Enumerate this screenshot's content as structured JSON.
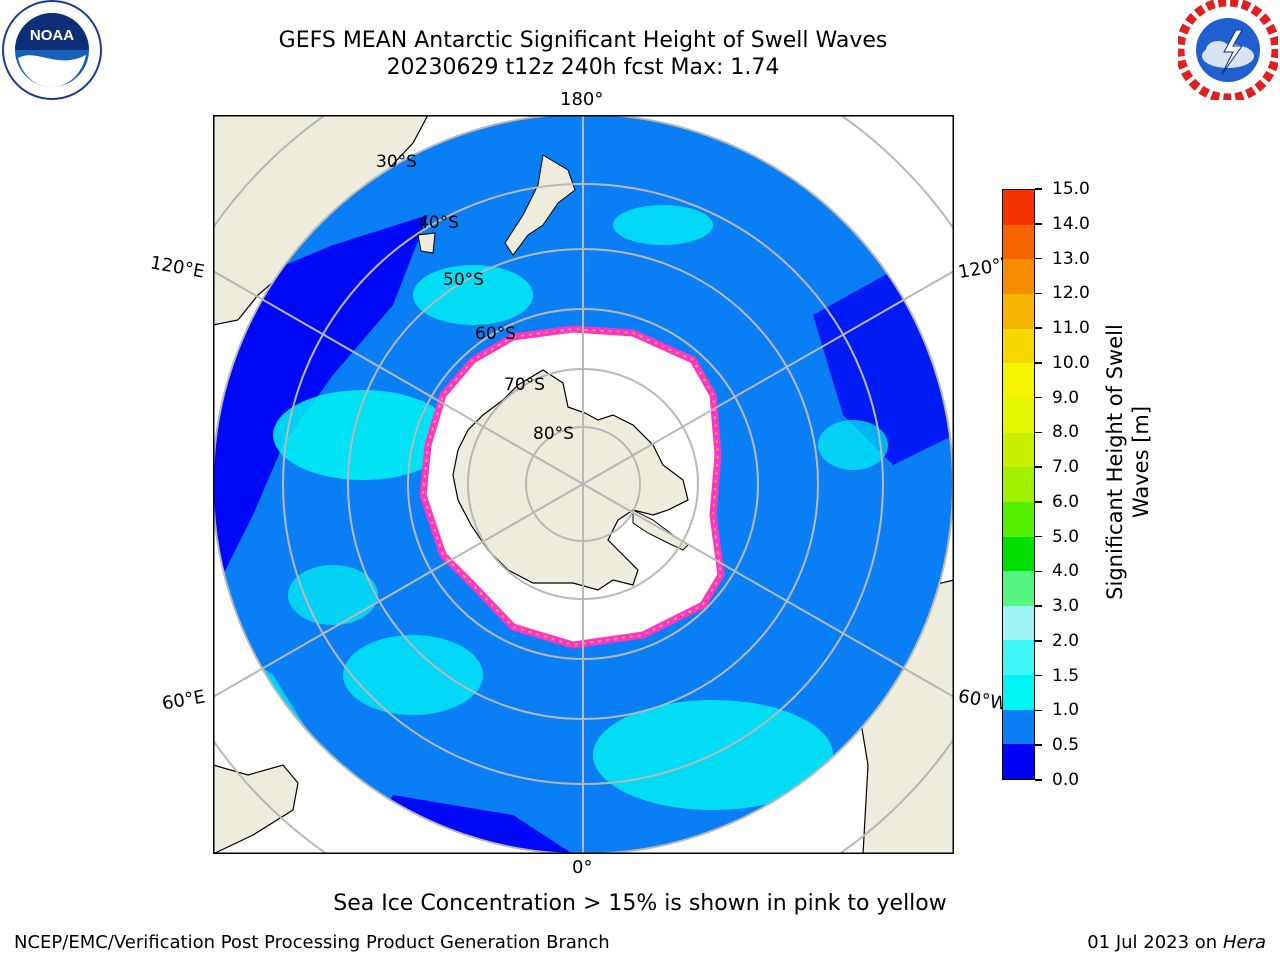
{
  "header": {
    "title_line1": "GEFS MEAN Antarctic Significant Height of Swell Waves",
    "title_line2": "20230629 t12z 240h fcst   Max: 1.74"
  },
  "logos": {
    "left_name": "NOAA",
    "right_name": "NATIONAL WEATHER SERVICE"
  },
  "map": {
    "longitude_labels": [
      "180°",
      "120°E",
      "120°W",
      "60°E",
      "60°W",
      "0°"
    ],
    "latitude_labels": [
      "30°S",
      "40°S",
      "50°S",
      "60°S",
      "70°S",
      "80°S"
    ],
    "colors": {
      "land": "#eeecdc",
      "ocean_low": "#0a7ff5",
      "ocean_calm": "#0009f5",
      "ocean_mid": "#00f5f5",
      "sea_ice": "#ffffff",
      "ice_edge": "#ff33cc",
      "ice_edge_alt": "#f5b030",
      "grid": "#b8b8b8"
    }
  },
  "colorbar": {
    "title_line1": "Significant Height of Swell",
    "title_line2": "Waves [m]",
    "ticks": [
      "0.0",
      "0.5",
      "1.0",
      "1.5",
      "2.0",
      "3.0",
      "4.0",
      "5.0",
      "6.0",
      "7.0",
      "8.0",
      "9.0",
      "10.0",
      "11.0",
      "12.0",
      "13.0",
      "14.0",
      "15.0"
    ],
    "colors": [
      "#0000f5",
      "#0a7ff5",
      "#00f5f5",
      "#40f5f5",
      "#a0f5f5",
      "#55f580",
      "#00e000",
      "#55f000",
      "#a0f000",
      "#c8f000",
      "#e6f500",
      "#f5f500",
      "#f5d800",
      "#f5b400",
      "#f58c00",
      "#f56400",
      "#f53200",
      "#f50000"
    ]
  },
  "footer": {
    "caption": "Sea Ice Concentration > 15% is shown in pink to yellow",
    "left": "NCEP/EMC/Verification Post Processing Product Generation Branch",
    "right_date": "01 Jul 2023 on ",
    "right_host": "Hera"
  }
}
